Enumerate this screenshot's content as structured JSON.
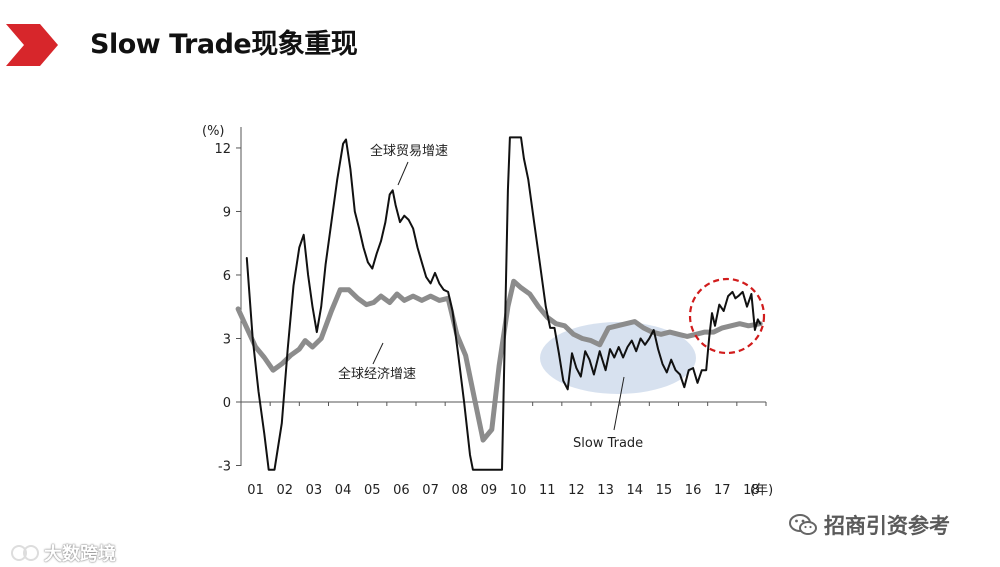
{
  "slide": {
    "title": "Slow Trade现象重现"
  },
  "watermarks": {
    "left": "大数跨境",
    "right": "招商引资参考"
  },
  "chart_data": {
    "type": "line",
    "unit_label": "(%)",
    "x_unit_label": "(年)",
    "x_categories": [
      "01",
      "02",
      "03",
      "04",
      "05",
      "06",
      "07",
      "08",
      "09",
      "10",
      "11",
      "12",
      "13",
      "14",
      "15",
      "16",
      "17",
      "18"
    ],
    "x_range": [
      2001.0,
      2019.0
    ],
    "ylim": [
      -3,
      12.5
    ],
    "yticks": [
      -3,
      0,
      3,
      6,
      9,
      12
    ],
    "annotations": {
      "trade": "全球贸易增速",
      "economy": "全球经济增速",
      "slow_trade": "Slow Trade"
    },
    "colors": {
      "trade": "#111111",
      "economy": "#8c8c8c",
      "ellipse": "#c9d7ea",
      "circle": "#d11c1c",
      "title_arrow": "#d7262b"
    },
    "series": [
      {
        "key": "trade",
        "points": [
          [
            2001.2,
            6.8
          ],
          [
            2001.4,
            3.0
          ],
          [
            2001.6,
            0.5
          ],
          [
            2001.8,
            -1.5
          ],
          [
            2001.95,
            -3.2
          ],
          [
            2002.15,
            -3.2
          ],
          [
            2002.4,
            -1.0
          ],
          [
            2002.6,
            2.5
          ],
          [
            2002.8,
            5.5
          ],
          [
            2003.0,
            7.3
          ],
          [
            2003.15,
            7.9
          ],
          [
            2003.3,
            6.0
          ],
          [
            2003.45,
            4.5
          ],
          [
            2003.6,
            3.3
          ],
          [
            2003.75,
            4.5
          ],
          [
            2003.9,
            6.5
          ],
          [
            2004.1,
            8.5
          ],
          [
            2004.3,
            10.5
          ],
          [
            2004.5,
            12.2
          ],
          [
            2004.6,
            12.4
          ],
          [
            2004.75,
            11.0
          ],
          [
            2004.9,
            9.0
          ],
          [
            2005.05,
            8.2
          ],
          [
            2005.2,
            7.3
          ],
          [
            2005.35,
            6.6
          ],
          [
            2005.5,
            6.3
          ],
          [
            2005.65,
            7.0
          ],
          [
            2005.8,
            7.6
          ],
          [
            2005.95,
            8.5
          ],
          [
            2006.1,
            9.8
          ],
          [
            2006.2,
            10.0
          ],
          [
            2006.3,
            9.3
          ],
          [
            2006.45,
            8.5
          ],
          [
            2006.6,
            8.8
          ],
          [
            2006.75,
            8.6
          ],
          [
            2006.9,
            8.2
          ],
          [
            2007.05,
            7.3
          ],
          [
            2007.2,
            6.6
          ],
          [
            2007.35,
            5.9
          ],
          [
            2007.5,
            5.6
          ],
          [
            2007.65,
            6.1
          ],
          [
            2007.8,
            5.6
          ],
          [
            2007.95,
            5.3
          ],
          [
            2008.1,
            5.2
          ],
          [
            2008.25,
            4.3
          ],
          [
            2008.45,
            2.2
          ],
          [
            2008.65,
            0.0
          ],
          [
            2008.85,
            -2.5
          ],
          [
            2008.95,
            -3.2
          ],
          [
            2009.95,
            -3.2
          ],
          [
            2010.05,
            3.5
          ],
          [
            2010.15,
            10.0
          ],
          [
            2010.22,
            12.5
          ],
          [
            2010.6,
            12.5
          ],
          [
            2010.7,
            11.5
          ],
          [
            2010.85,
            10.5
          ],
          [
            2011.05,
            8.5
          ],
          [
            2011.25,
            6.5
          ],
          [
            2011.45,
            4.5
          ],
          [
            2011.6,
            3.5
          ],
          [
            2011.75,
            3.5
          ],
          [
            2011.9,
            2.3
          ],
          [
            2012.05,
            1.0
          ],
          [
            2012.2,
            0.6
          ],
          [
            2012.35,
            2.3
          ],
          [
            2012.5,
            1.6
          ],
          [
            2012.65,
            1.2
          ],
          [
            2012.8,
            2.4
          ],
          [
            2012.95,
            2.0
          ],
          [
            2013.1,
            1.3
          ],
          [
            2013.3,
            2.4
          ],
          [
            2013.5,
            1.5
          ],
          [
            2013.65,
            2.5
          ],
          [
            2013.8,
            2.1
          ],
          [
            2013.95,
            2.6
          ],
          [
            2014.1,
            2.1
          ],
          [
            2014.25,
            2.6
          ],
          [
            2014.4,
            2.9
          ],
          [
            2014.55,
            2.4
          ],
          [
            2014.7,
            3.0
          ],
          [
            2014.85,
            2.7
          ],
          [
            2015.0,
            3.0
          ],
          [
            2015.15,
            3.4
          ],
          [
            2015.3,
            2.5
          ],
          [
            2015.45,
            1.8
          ],
          [
            2015.6,
            1.4
          ],
          [
            2015.75,
            2.0
          ],
          [
            2015.9,
            1.5
          ],
          [
            2016.05,
            1.3
          ],
          [
            2016.2,
            0.7
          ],
          [
            2016.35,
            1.5
          ],
          [
            2016.5,
            1.6
          ],
          [
            2016.65,
            0.9
          ],
          [
            2016.8,
            1.5
          ],
          [
            2016.95,
            1.5
          ],
          [
            2017.05,
            3.0
          ],
          [
            2017.15,
            4.2
          ],
          [
            2017.25,
            3.6
          ],
          [
            2017.4,
            4.6
          ],
          [
            2017.55,
            4.3
          ],
          [
            2017.7,
            5.0
          ],
          [
            2017.85,
            5.2
          ],
          [
            2017.95,
            4.9
          ],
          [
            2018.05,
            5.0
          ],
          [
            2018.2,
            5.2
          ],
          [
            2018.35,
            4.5
          ],
          [
            2018.5,
            5.1
          ],
          [
            2018.62,
            3.4
          ],
          [
            2018.72,
            3.9
          ],
          [
            2018.8,
            3.7
          ]
        ]
      },
      {
        "key": "economy",
        "points": [
          [
            2000.9,
            4.4
          ],
          [
            2001.2,
            3.5
          ],
          [
            2001.5,
            2.6
          ],
          [
            2001.8,
            2.1
          ],
          [
            2002.1,
            1.5
          ],
          [
            2002.4,
            1.8
          ],
          [
            2002.7,
            2.2
          ],
          [
            2003.0,
            2.5
          ],
          [
            2003.2,
            2.9
          ],
          [
            2003.45,
            2.6
          ],
          [
            2003.75,
            3.0
          ],
          [
            2004.1,
            4.3
          ],
          [
            2004.4,
            5.3
          ],
          [
            2004.7,
            5.3
          ],
          [
            2005.0,
            4.9
          ],
          [
            2005.3,
            4.6
          ],
          [
            2005.55,
            4.7
          ],
          [
            2005.8,
            5.0
          ],
          [
            2006.1,
            4.7
          ],
          [
            2006.35,
            5.1
          ],
          [
            2006.6,
            4.8
          ],
          [
            2006.9,
            5.0
          ],
          [
            2007.2,
            4.8
          ],
          [
            2007.5,
            5.0
          ],
          [
            2007.8,
            4.8
          ],
          [
            2008.1,
            4.9
          ],
          [
            2008.4,
            3.2
          ],
          [
            2008.7,
            2.2
          ],
          [
            2009.0,
            0.2
          ],
          [
            2009.3,
            -1.8
          ],
          [
            2009.6,
            -1.3
          ],
          [
            2009.85,
            1.7
          ],
          [
            2010.15,
            4.5
          ],
          [
            2010.35,
            5.7
          ],
          [
            2010.6,
            5.4
          ],
          [
            2010.9,
            5.1
          ],
          [
            2011.2,
            4.5
          ],
          [
            2011.5,
            4.0
          ],
          [
            2011.8,
            3.7
          ],
          [
            2012.1,
            3.6
          ],
          [
            2012.4,
            3.2
          ],
          [
            2012.7,
            3.0
          ],
          [
            2013.0,
            2.9
          ],
          [
            2013.3,
            2.7
          ],
          [
            2013.6,
            3.5
          ],
          [
            2013.9,
            3.6
          ],
          [
            2014.2,
            3.7
          ],
          [
            2014.5,
            3.8
          ],
          [
            2014.8,
            3.5
          ],
          [
            2015.1,
            3.3
          ],
          [
            2015.4,
            3.2
          ],
          [
            2015.7,
            3.3
          ],
          [
            2016.0,
            3.2
          ],
          [
            2016.3,
            3.1
          ],
          [
            2016.6,
            3.2
          ],
          [
            2016.9,
            3.3
          ],
          [
            2017.2,
            3.3
          ],
          [
            2017.5,
            3.5
          ],
          [
            2017.8,
            3.6
          ],
          [
            2018.1,
            3.7
          ],
          [
            2018.4,
            3.6
          ],
          [
            2018.8,
            3.7
          ]
        ]
      }
    ]
  }
}
